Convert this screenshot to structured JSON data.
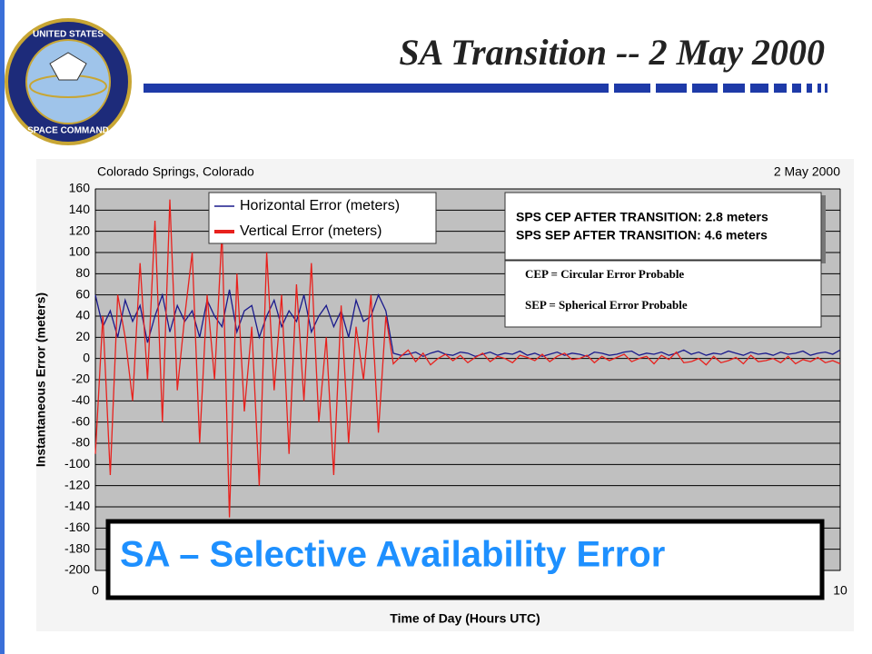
{
  "slide": {
    "title": "SA Transition -- 2 May 2000",
    "logo": [
      "UNITED STATES",
      "SPACE COMMAND"
    ],
    "banner": "SA – Selective Availability Error"
  },
  "chart_data": {
    "type": "line",
    "location": "Colorado Springs, Colorado",
    "date": "2 May 2000",
    "x_label": "Time of Day (Hours UTC)",
    "y_label": "Instantaneous Error (meters)",
    "xlim": [
      0,
      10
    ],
    "xticks": [
      0,
      10
    ],
    "ylim": [
      -200,
      160
    ],
    "yticks": [
      -200,
      -180,
      -160,
      -140,
      -120,
      -100,
      -80,
      -60,
      -40,
      -20,
      0,
      20,
      40,
      60,
      80,
      100,
      120,
      140,
      160
    ],
    "grid": true,
    "legend": "upper left",
    "annotations": [
      "SPS CEP AFTER TRANSITION:  2.8 meters",
      "SPS SEP AFTER TRANSITION:  4.6 meters",
      "CEP = Circular Error Probable",
      "SEP = Spherical Error Probable"
    ],
    "x": [
      0,
      0.1,
      0.2,
      0.3,
      0.4,
      0.5,
      0.6,
      0.7,
      0.8,
      0.9,
      1,
      1.1,
      1.2,
      1.3,
      1.4,
      1.5,
      1.6,
      1.7,
      1.8,
      1.9,
      2,
      2.1,
      2.2,
      2.3,
      2.4,
      2.5,
      2.6,
      2.7,
      2.8,
      2.9,
      3,
      3.1,
      3.2,
      3.3,
      3.4,
      3.5,
      3.6,
      3.7,
      3.8,
      3.9,
      4,
      4.1,
      4.2,
      4.3,
      4.4,
      4.5,
      4.6,
      4.7,
      4.8,
      4.9,
      5,
      5.1,
      5.2,
      5.3,
      5.4,
      5.5,
      5.6,
      5.7,
      5.8,
      5.9,
      6,
      6.1,
      6.2,
      6.3,
      6.4,
      6.5,
      6.6,
      6.7,
      6.8,
      6.9,
      7,
      7.1,
      7.2,
      7.3,
      7.4,
      7.5,
      7.6,
      7.7,
      7.8,
      7.9,
      8,
      8.1,
      8.2,
      8.3,
      8.4,
      8.5,
      8.6,
      8.7,
      8.8,
      8.9,
      9,
      9.1,
      9.2,
      9.3,
      9.4,
      9.5,
      9.6,
      9.7,
      9.8,
      9.9,
      10
    ],
    "series": [
      {
        "name": "Horizontal Error (meters)",
        "color": "#1a1a8c",
        "values": [
          60,
          30,
          45,
          20,
          55,
          35,
          50,
          15,
          40,
          60,
          25,
          50,
          35,
          45,
          20,
          55,
          40,
          30,
          65,
          25,
          45,
          50,
          20,
          40,
          55,
          30,
          45,
          35,
          60,
          25,
          40,
          50,
          30,
          45,
          20,
          55,
          35,
          40,
          60,
          45,
          5,
          3,
          4,
          6,
          2,
          5,
          7,
          4,
          3,
          6,
          5,
          2,
          4,
          6,
          3,
          5,
          4,
          7,
          3,
          5,
          2,
          4,
          6,
          3,
          5,
          4,
          2,
          6,
          5,
          3,
          4,
          6,
          7,
          3,
          5,
          4,
          6,
          3,
          5,
          8,
          4,
          6,
          3,
          5,
          4,
          7,
          5,
          3,
          6,
          4,
          5,
          3,
          6,
          4,
          5,
          7,
          3,
          5,
          6,
          4,
          8
        ]
      },
      {
        "name": "Vertical Error (meters)",
        "color": "#e8211d",
        "values": [
          -90,
          40,
          -110,
          60,
          20,
          -40,
          90,
          -20,
          130,
          -60,
          150,
          -30,
          40,
          100,
          -80,
          60,
          -20,
          120,
          -150,
          80,
          -50,
          30,
          -120,
          100,
          -30,
          60,
          -90,
          70,
          -40,
          90,
          -60,
          20,
          -110,
          50,
          -80,
          30,
          -20,
          60,
          -70,
          40,
          -5,
          2,
          8,
          -3,
          5,
          -6,
          0,
          4,
          -2,
          3,
          -4,
          1,
          5,
          -3,
          2,
          0,
          -4,
          3,
          1,
          -2,
          4,
          -3,
          2,
          5,
          -1,
          0,
          3,
          -4,
          2,
          -2,
          1,
          4,
          -3,
          0,
          2,
          -5,
          3,
          -1,
          6,
          -4,
          -3,
          0,
          -6,
          2,
          -4,
          -2,
          1,
          -5,
          3,
          -3,
          -2,
          0,
          -4,
          2,
          -5,
          -1,
          -3,
          1,
          -4,
          -2,
          -5
        ]
      }
    ]
  }
}
